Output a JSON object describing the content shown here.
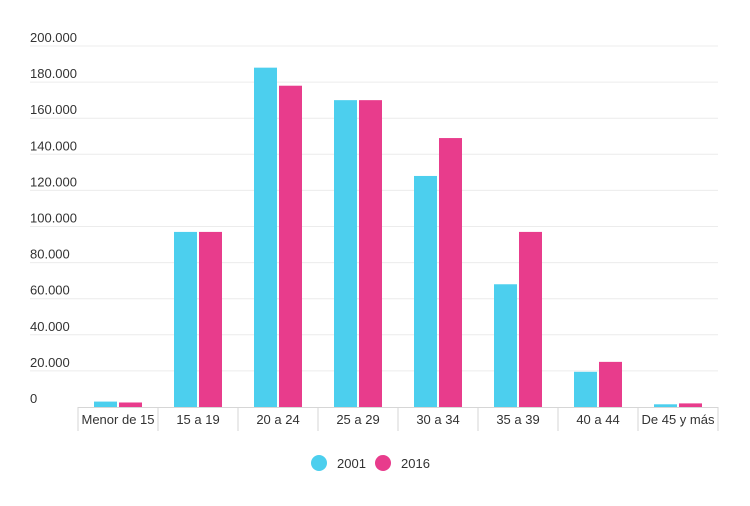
{
  "chart_data": {
    "type": "bar",
    "categories": [
      "Menor de 15",
      "15 a 19",
      "20 a 24",
      "25 a 29",
      "30 a 34",
      "35 a 39",
      "40 a 44",
      "De 45 y más"
    ],
    "series": [
      {
        "name": "2001",
        "color": "#4ccfee",
        "values": [
          3000,
          97000,
          188000,
          170000,
          128000,
          68000,
          19500,
          1500
        ]
      },
      {
        "name": "2016",
        "color": "#e83c8c",
        "values": [
          2500,
          97000,
          178000,
          170000,
          149000,
          97000,
          25000,
          2000
        ]
      }
    ],
    "yticks": [
      "0",
      "20.000",
      "40.000",
      "60.000",
      "80.000",
      "100.000",
      "120.000",
      "140.000",
      "160.000",
      "180.000",
      "200.000"
    ],
    "ylim": [
      0,
      200000
    ],
    "grid": true,
    "legend_position": "bottom-center"
  }
}
